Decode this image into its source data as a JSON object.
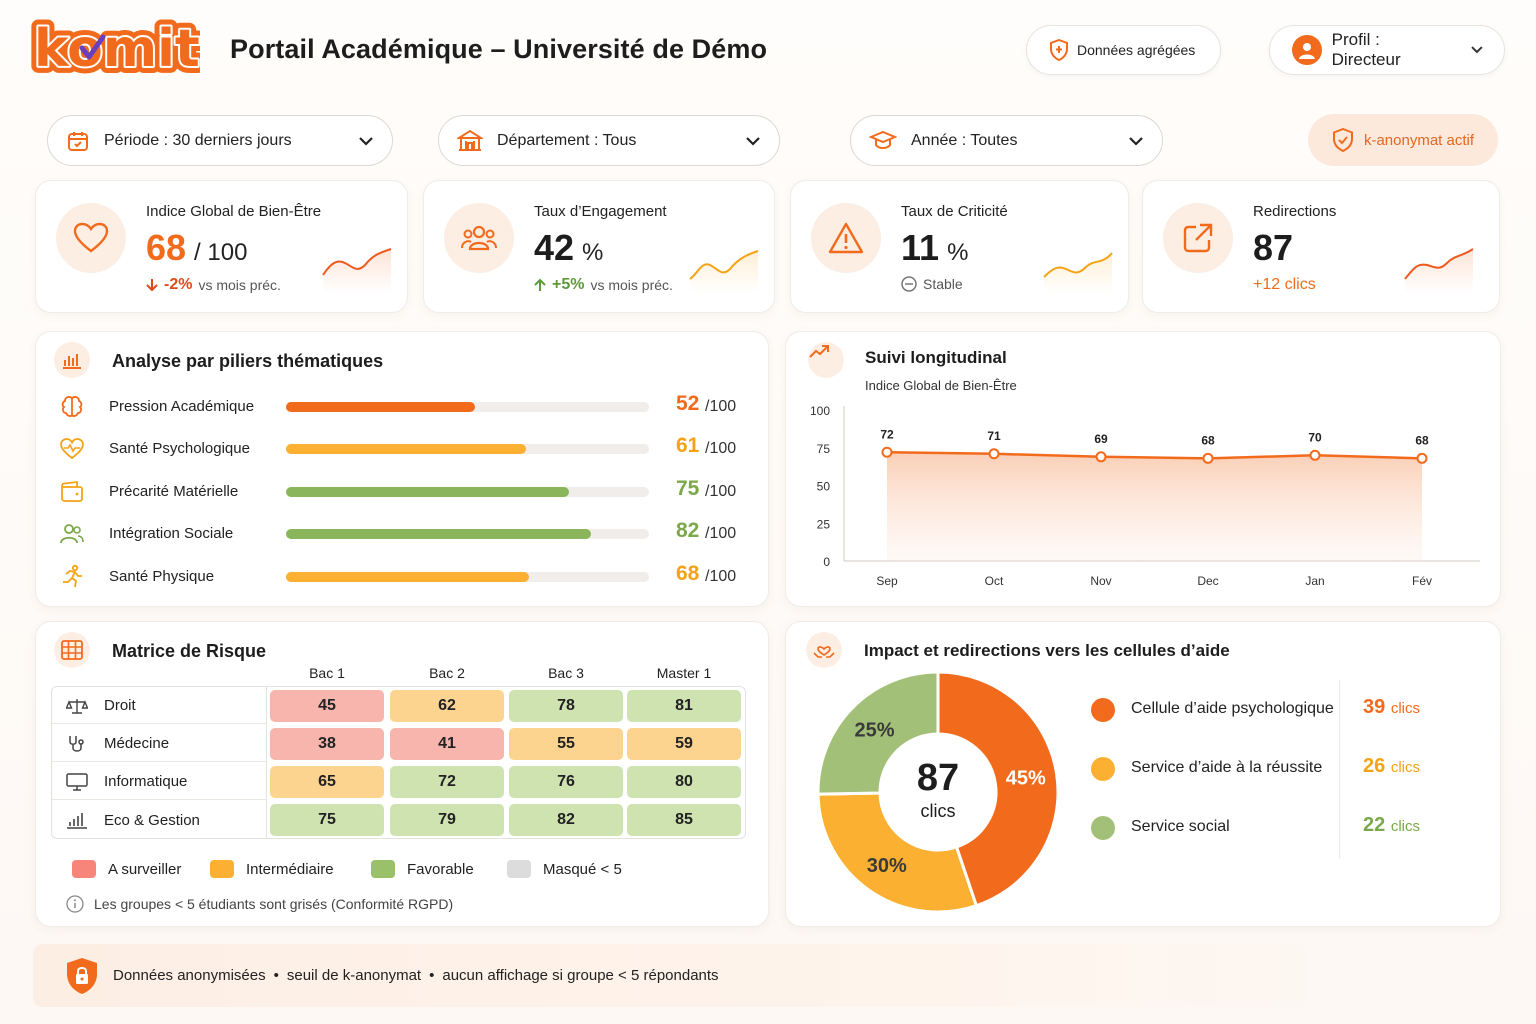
{
  "brand": {
    "logo_text": "komit",
    "accent": "#f26b1d"
  },
  "header": {
    "title": "Portail Académique – Université de Démo",
    "aggregated_label": "Données agrégées",
    "profile_label": "Profil : Directeur"
  },
  "filters": {
    "period": "Période : 30 derniers jours",
    "department": "Département : Tous",
    "year": "Année : Toutes",
    "k_anonymity": "k-anonymat actif"
  },
  "kpis": [
    {
      "title": "Indice Global de Bien-Être",
      "value": "68",
      "unit": "/ 100",
      "delta": "-2%",
      "delta_text": "vs mois préc.",
      "trend": "down",
      "icon": "heart-icon"
    },
    {
      "title": "Taux d’Engagement",
      "value": "42",
      "unit": "%",
      "delta": "+5%",
      "delta_text": "vs mois préc.",
      "trend": "up",
      "icon": "users-icon"
    },
    {
      "title": "Taux de Criticité",
      "value": "11",
      "unit": "%",
      "delta_text": "Stable",
      "trend": "stable",
      "icon": "warning-icon"
    },
    {
      "title": "Redirections",
      "value": "87",
      "delta": "+12 clics",
      "trend": "up",
      "icon": "external-link-icon"
    }
  ],
  "pillars": {
    "title": "Analyse par piliers thématiques",
    "denominator": "/100",
    "items": [
      {
        "label": "Pression Académique",
        "value": 52,
        "color": "#f26b1d",
        "icon": "brain-icon"
      },
      {
        "label": "Santé Psychologique",
        "value": 61,
        "color": "#fbb032",
        "icon": "heart-pulse-icon"
      },
      {
        "label": "Précarité Matérielle",
        "value": 75,
        "color": "#8ab55a",
        "icon": "wallet-icon"
      },
      {
        "label": "Intégration Sociale",
        "value": 82,
        "color": "#8ab55a",
        "icon": "people-icon"
      },
      {
        "label": "Santé Physique",
        "value": 68,
        "color": "#fbb032",
        "icon": "runner-icon"
      }
    ]
  },
  "longitudinal": {
    "title": "Suivi longitudinal",
    "subtitle": "Indice Global de Bien-Être"
  },
  "chart_data": {
    "type": "area",
    "categories": [
      "Sep",
      "Oct",
      "Nov",
      "Dec",
      "Jan",
      "Fév"
    ],
    "series": [
      {
        "name": "Indice Global de Bien-Être",
        "values": [
          72,
          71,
          69,
          68,
          70,
          68
        ]
      }
    ],
    "ylim": [
      0,
      100
    ],
    "yticks": [
      0,
      25,
      50,
      75,
      100
    ],
    "grid": false
  },
  "matrix": {
    "title": "Matrice de Risque",
    "columns": [
      "Bac 1",
      "Bac 2",
      "Bac 3",
      "Master 1"
    ],
    "rows": [
      {
        "label": "Droit",
        "icon": "scales-icon",
        "values": [
          45,
          62,
          78,
          81
        ]
      },
      {
        "label": "Médecine",
        "icon": "stethoscope-icon",
        "values": [
          38,
          41,
          55,
          59
        ]
      },
      {
        "label": "Informatique",
        "icon": "monitor-icon",
        "values": [
          65,
          72,
          76,
          80
        ]
      },
      {
        "label": "Eco & Gestion",
        "icon": "bar-chart-icon",
        "values": [
          75,
          79,
          82,
          85
        ]
      }
    ],
    "legend": [
      {
        "label": "A surveiller",
        "color": "#f7857a"
      },
      {
        "label": "Intermédiaire",
        "color": "#fbb032"
      },
      {
        "label": "Favorable",
        "color": "#9bc06a"
      },
      {
        "label": "Masqué < 5",
        "color": "#dcdcdc"
      }
    ],
    "note": "Les groupes < 5 étudiants sont grisés (Conformité RGPD)"
  },
  "impact": {
    "title": "Impact et redirections vers les cellules d’aide",
    "total": "87",
    "total_unit": "clics",
    "unit": "clics",
    "slices": [
      {
        "label": "Cellule d’aide psychologique",
        "value": 39,
        "pct": "45%",
        "color": "#f26b1d"
      },
      {
        "label": "Service d’aide à la réussite",
        "value": 26,
        "pct": "30%",
        "color": "#fbb032"
      },
      {
        "label": "Service social",
        "value": 22,
        "pct": "25%",
        "color": "#a3c078"
      }
    ]
  },
  "footer": {
    "part1": "Données anonymisées",
    "part2": "seuil de k-anonymat",
    "part3": "aucun affichage si groupe < 5 répondants",
    "separator": "•"
  }
}
